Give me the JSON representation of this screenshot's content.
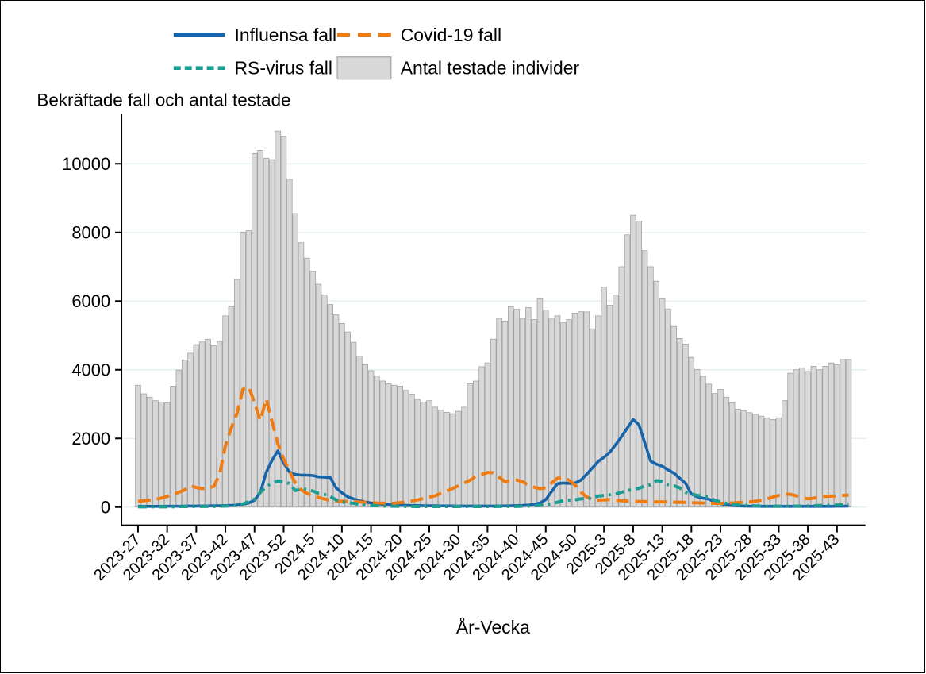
{
  "title": "Bekräftade fall och antal testade",
  "colors": {
    "grid": "#e6f0ef",
    "axis": "#000000",
    "text": "#000000",
    "background": "#ffffff"
  },
  "legend": {
    "position": "top",
    "items": [
      {
        "label": "Influensa fall",
        "swatch": "line-solid"
      },
      {
        "label": "Covid-19 fall",
        "swatch": "line-longdash"
      },
      {
        "label": "RS-virus fall",
        "swatch": "line-shortdash"
      },
      {
        "label": "Antal testade individer",
        "swatch": "rect"
      }
    ]
  },
  "chart_data": {
    "type": "bar+line",
    "title": "Bekräftade fall och antal testade",
    "xlabel": "År-Vecka",
    "ylabel": "",
    "ylim": [
      0,
      11000
    ],
    "yticks": [
      0,
      2000,
      4000,
      6000,
      8000,
      10000
    ],
    "grid": true,
    "legend_position": "top",
    "xtick_every": 5,
    "xticklabels": [
      "2023-27",
      "2023-32",
      "2023-37",
      "2023-42",
      "2023-47",
      "2023-52",
      "2024-5",
      "2024-10",
      "2024-15",
      "2024-20",
      "2024-25",
      "2024-30",
      "2024-35",
      "2024-40",
      "2024-45",
      "2024-50",
      "2025-3",
      "2025-8",
      "2025-13",
      "2025-18",
      "2025-23",
      "2025-28",
      "2025-33",
      "2025-38",
      "2025-43"
    ],
    "categories": [
      "2023-27",
      "2023-28",
      "2023-29",
      "2023-30",
      "2023-31",
      "2023-32",
      "2023-33",
      "2023-34",
      "2023-35",
      "2023-36",
      "2023-37",
      "2023-38",
      "2023-39",
      "2023-40",
      "2023-41",
      "2023-42",
      "2023-43",
      "2023-44",
      "2023-45",
      "2023-46",
      "2023-47",
      "2023-48",
      "2023-49",
      "2023-50",
      "2023-51",
      "2023-52",
      "2024-1",
      "2024-2",
      "2024-3",
      "2024-4",
      "2024-5",
      "2024-6",
      "2024-7",
      "2024-8",
      "2024-9",
      "2024-10",
      "2024-11",
      "2024-12",
      "2024-13",
      "2024-14",
      "2024-15",
      "2024-16",
      "2024-17",
      "2024-18",
      "2024-19",
      "2024-20",
      "2024-21",
      "2024-22",
      "2024-23",
      "2024-24",
      "2024-25",
      "2024-26",
      "2024-27",
      "2024-28",
      "2024-29",
      "2024-30",
      "2024-31",
      "2024-32",
      "2024-33",
      "2024-34",
      "2024-35",
      "2024-36",
      "2024-37",
      "2024-38",
      "2024-39",
      "2024-40",
      "2024-41",
      "2024-42",
      "2024-43",
      "2024-44",
      "2024-45",
      "2024-46",
      "2024-47",
      "2024-48",
      "2024-49",
      "2024-50",
      "2024-51",
      "2024-52",
      "2025-1",
      "2025-2",
      "2025-3",
      "2025-4",
      "2025-5",
      "2025-6",
      "2025-7",
      "2025-8",
      "2025-9",
      "2025-10",
      "2025-11",
      "2025-12",
      "2025-13",
      "2025-14",
      "2025-15",
      "2025-16",
      "2025-17",
      "2025-18",
      "2025-19",
      "2025-20",
      "2025-21",
      "2025-22",
      "2025-23",
      "2025-24",
      "2025-25",
      "2025-26",
      "2025-27",
      "2025-28",
      "2025-29",
      "2025-30",
      "2025-31",
      "2025-32",
      "2025-33",
      "2025-34",
      "2025-35",
      "2025-36",
      "2025-37",
      "2025-38",
      "2025-39",
      "2025-40",
      "2025-41",
      "2025-42",
      "2025-43",
      "2025-44",
      "2025-45"
    ],
    "series": [
      {
        "name": "Antal testade individer",
        "id": "testade",
        "type": "bar",
        "color_fill": "#d8d8d8",
        "color_stroke": "#a2a2a2",
        "values": [
          3550,
          3300,
          3200,
          3100,
          3060,
          3040,
          3520,
          3990,
          4280,
          4480,
          4730,
          4810,
          4890,
          4700,
          4830,
          5570,
          5840,
          6630,
          8010,
          8050,
          10300,
          10390,
          10160,
          10120,
          10950,
          10800,
          9550,
          8550,
          7700,
          7250,
          6870,
          6490,
          6180,
          5900,
          5600,
          5350,
          5100,
          4800,
          4400,
          4150,
          3970,
          3820,
          3670,
          3590,
          3550,
          3520,
          3400,
          3290,
          3140,
          3060,
          3100,
          2910,
          2830,
          2760,
          2720,
          2790,
          2910,
          3590,
          3670,
          4090,
          4200,
          4890,
          5500,
          5420,
          5840,
          5760,
          5500,
          5810,
          5460,
          6070,
          5740,
          5500,
          5570,
          5380,
          5460,
          5650,
          5690,
          5685,
          5190,
          5570,
          6410,
          5880,
          6180,
          7000,
          7930,
          8500,
          8330,
          7470,
          7000,
          6580,
          6070,
          5770,
          5260,
          4910,
          4750,
          4360,
          4010,
          3810,
          3580,
          3310,
          3430,
          3200,
          3040,
          2850,
          2800,
          2750,
          2700,
          2650,
          2600,
          2550,
          2600,
          3100,
          3900,
          4000,
          4050,
          3950,
          4100,
          4000,
          4100,
          4200,
          4150,
          4300,
          4300
        ]
      },
      {
        "name": "Influensa fall",
        "id": "influensa",
        "type": "line",
        "style": "solid",
        "color": "#1665aa",
        "values": [
          25,
          20,
          20,
          20,
          20,
          25,
          25,
          25,
          30,
          30,
          30,
          35,
          35,
          40,
          40,
          45,
          50,
          60,
          80,
          120,
          200,
          420,
          1010,
          1360,
          1640,
          1280,
          1020,
          950,
          930,
          930,
          920,
          880,
          870,
          860,
          560,
          420,
          300,
          240,
          190,
          150,
          120,
          100,
          80,
          70,
          60,
          55,
          50,
          45,
          45,
          40,
          40,
          40,
          35,
          35,
          35,
          30,
          30,
          30,
          30,
          30,
          30,
          30,
          35,
          35,
          40,
          45,
          50,
          60,
          80,
          120,
          220,
          450,
          680,
          700,
          690,
          700,
          780,
          950,
          1140,
          1330,
          1450,
          1600,
          1820,
          2050,
          2300,
          2550,
          2400,
          1870,
          1340,
          1250,
          1190,
          1080,
          990,
          840,
          690,
          380,
          300,
          260,
          230,
          150,
          100,
          70,
          50,
          40,
          30,
          25,
          25,
          20,
          20,
          20,
          20,
          20,
          20,
          20,
          20,
          20,
          20,
          20,
          20,
          20,
          25,
          25,
          30
        ]
      },
      {
        "name": "Covid-19 fall",
        "id": "covid",
        "type": "line",
        "style": "longdash",
        "color": "#ef7c12",
        "values": [
          170,
          185,
          200,
          220,
          260,
          310,
          370,
          430,
          500,
          620,
          570,
          540,
          560,
          600,
          950,
          1790,
          2300,
          2730,
          3430,
          3500,
          3040,
          2520,
          3150,
          2500,
          1850,
          1400,
          1050,
          700,
          500,
          400,
          330,
          280,
          230,
          200,
          180,
          170,
          165,
          160,
          150,
          140,
          130,
          120,
          115,
          110,
          115,
          130,
          150,
          180,
          210,
          250,
          280,
          330,
          400,
          470,
          540,
          620,
          700,
          780,
          900,
          950,
          1010,
          1000,
          870,
          740,
          780,
          790,
          740,
          650,
          580,
          540,
          560,
          700,
          840,
          860,
          780,
          650,
          440,
          300,
          220,
          200,
          210,
          220,
          200,
          185,
          175,
          170,
          165,
          160,
          155,
          150,
          155,
          150,
          145,
          140,
          135,
          130,
          125,
          120,
          115,
          110,
          110,
          115,
          120,
          130,
          140,
          150,
          170,
          200,
          240,
          290,
          340,
          380,
          370,
          330,
          280,
          240,
          260,
          290,
          310,
          320,
          330,
          340,
          350
        ]
      },
      {
        "name": "RS-virus fall",
        "id": "rs",
        "type": "line",
        "style": "dashdot",
        "color": "#1b9e91",
        "values": [
          10,
          10,
          10,
          10,
          10,
          10,
          10,
          15,
          15,
          15,
          15,
          20,
          20,
          20,
          25,
          30,
          40,
          60,
          90,
          160,
          230,
          430,
          590,
          700,
          760,
          740,
          690,
          480,
          530,
          520,
          470,
          400,
          370,
          310,
          210,
          150,
          130,
          110,
          80,
          60,
          45,
          40,
          30,
          25,
          25,
          20,
          20,
          20,
          15,
          15,
          15,
          15,
          15,
          15,
          15,
          15,
          15,
          15,
          15,
          15,
          15,
          15,
          20,
          20,
          20,
          20,
          25,
          30,
          40,
          50,
          70,
          100,
          140,
          190,
          200,
          210,
          240,
          250,
          260,
          320,
          340,
          360,
          380,
          430,
          480,
          520,
          545,
          615,
          650,
          770,
          750,
          650,
          620,
          560,
          430,
          380,
          340,
          320,
          280,
          200,
          150,
          110,
          80,
          60,
          50,
          40,
          35,
          30,
          25,
          25,
          25,
          25,
          25,
          30,
          30,
          35,
          40,
          45,
          50,
          55,
          60,
          70,
          90
        ]
      }
    ]
  }
}
